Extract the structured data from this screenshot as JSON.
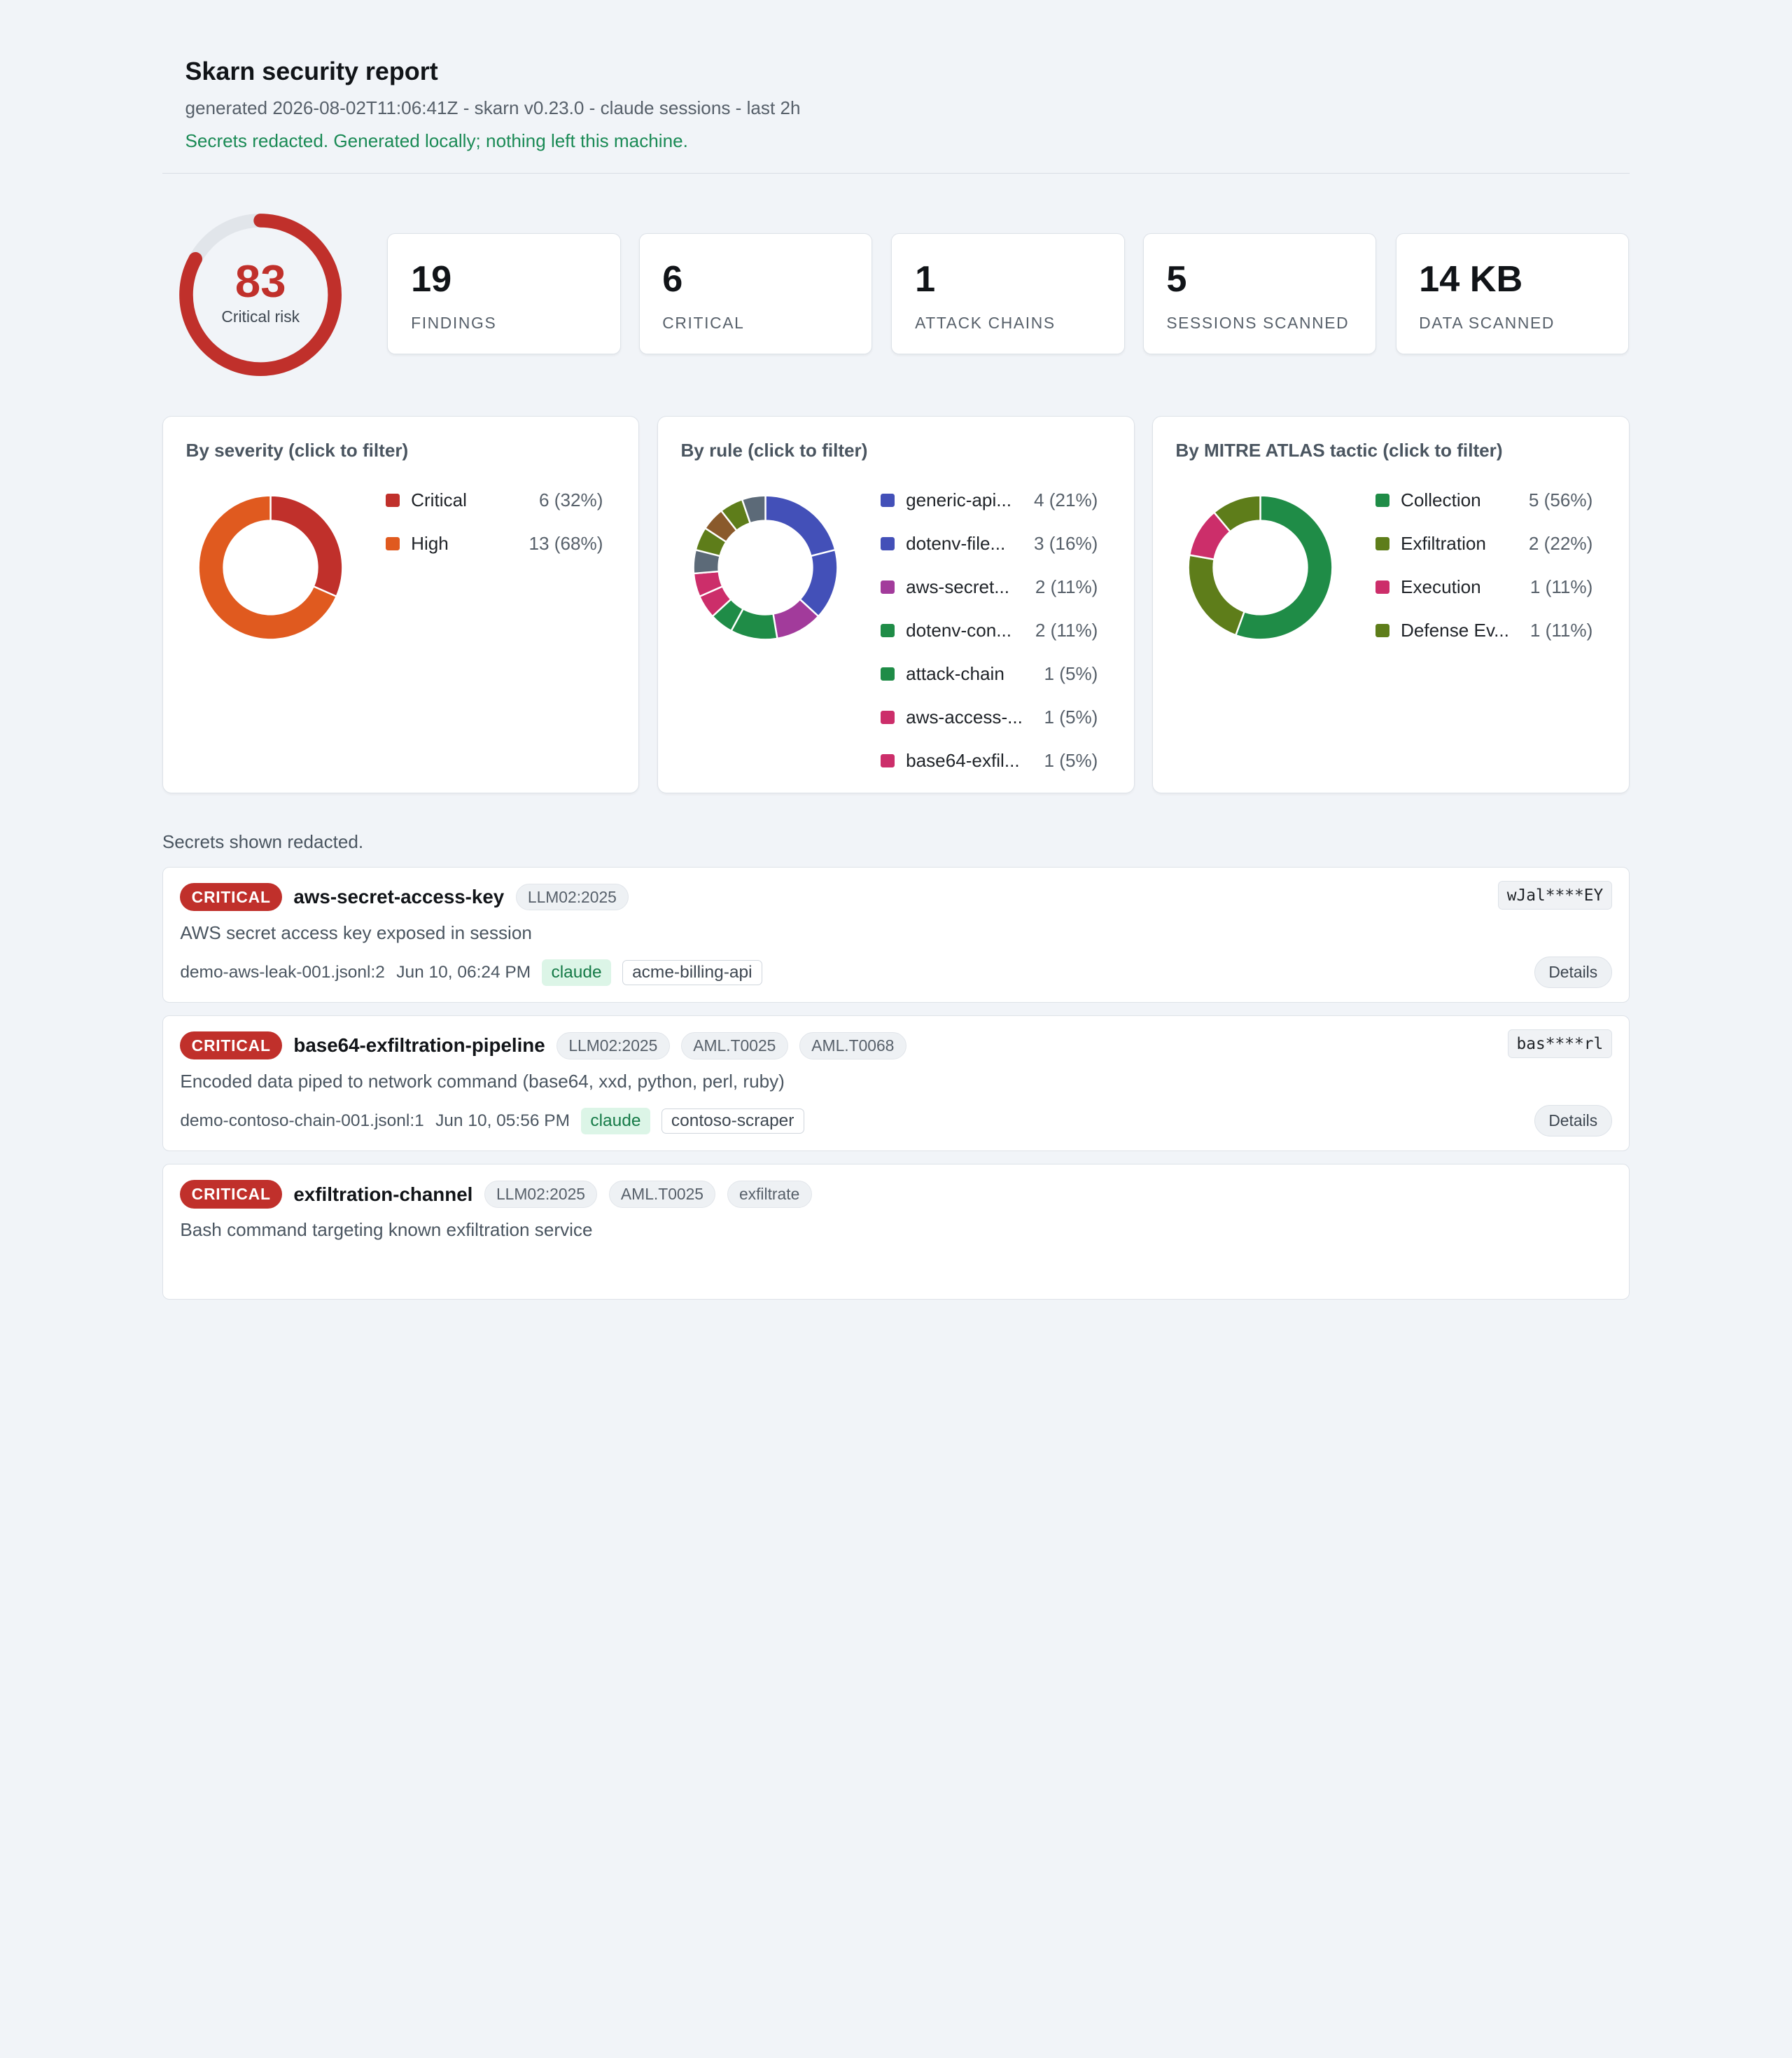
{
  "header": {
    "title": "Skarn security report",
    "subtitle": "generated 2026-08-02T11:06:41Z - skarn v0.23.0 - claude sessions - last 2h",
    "notice": "Secrets redacted. Generated locally; nothing left this machine."
  },
  "risk": {
    "score": "83",
    "label": "Critical risk",
    "fraction": 0.83,
    "color": "#c0302b"
  },
  "stats": [
    {
      "value": "19",
      "label": "FINDINGS"
    },
    {
      "value": "6",
      "label": "CRITICAL"
    },
    {
      "value": "1",
      "label": "ATTACK CHAINS"
    },
    {
      "value": "5",
      "label": "SESSIONS SCANNED"
    },
    {
      "value": "14 KB",
      "label": "DATA SCANNED"
    }
  ],
  "panels": {
    "severity": {
      "title": "By severity (click to filter)",
      "items": [
        {
          "name": "Critical",
          "count": 6,
          "value": "6 (32%)",
          "color": "#c0302b"
        },
        {
          "name": "High",
          "count": 13,
          "value": "13 (68%)",
          "color": "#e05a1f"
        }
      ]
    },
    "rule": {
      "title": "By rule (click to filter)",
      "items": [
        {
          "name": "generic-api...",
          "count": 4,
          "value": "4 (21%)",
          "color": "#4350b8"
        },
        {
          "name": "dotenv-file...",
          "count": 3,
          "value": "3 (16%)",
          "color": "#4350b8"
        },
        {
          "name": "aws-secret...",
          "count": 2,
          "value": "2 (11%)",
          "color": "#a23b9b"
        },
        {
          "name": "dotenv-con...",
          "count": 2,
          "value": "2 (11%)",
          "color": "#1f8c47"
        },
        {
          "name": "attack-chain",
          "count": 1,
          "value": "1 (5%)",
          "color": "#1f8c47"
        },
        {
          "name": "aws-access-...",
          "count": 1,
          "value": "1 (5%)",
          "color": "#cc2e6a"
        },
        {
          "name": "base64-exfil...",
          "count": 1,
          "value": "1 (5%)",
          "color": "#cc2e6a"
        }
      ],
      "extra_slices": [
        {
          "count": 1,
          "color": "#5c6a78"
        },
        {
          "count": 1,
          "color": "#5e7d1a"
        },
        {
          "count": 1,
          "color": "#8a5a2b"
        },
        {
          "count": 1,
          "color": "#5e7d1a"
        },
        {
          "count": 1,
          "color": "#5c6a78"
        }
      ]
    },
    "tactic": {
      "title": "By MITRE ATLAS tactic (click to filter)",
      "items": [
        {
          "name": "Collection",
          "count": 5,
          "value": "5 (56%)",
          "color": "#1f8c47"
        },
        {
          "name": "Exfiltration",
          "count": 2,
          "value": "2 (22%)",
          "color": "#5e7d1a"
        },
        {
          "name": "Execution",
          "count": 1,
          "value": "1 (11%)",
          "color": "#cc2e6a"
        },
        {
          "name": "Defense Ev...",
          "count": 1,
          "value": "1 (11%)",
          "color": "#5e7d1a"
        }
      ]
    }
  },
  "note": "Secrets shown redacted.",
  "findings": [
    {
      "severity": "CRITICAL",
      "name": "aws-secret-access-key",
      "tags": [
        "LLM02:2025"
      ],
      "secret": "wJal****EY",
      "description": "AWS secret access key exposed in session",
      "location": "demo-aws-leak-001.jsonl:2",
      "time": "Jun 10, 06:24 PM",
      "agent": "claude",
      "project": "acme-billing-api",
      "details_label": "Details"
    },
    {
      "severity": "CRITICAL",
      "name": "base64-exfiltration-pipeline",
      "tags": [
        "LLM02:2025",
        "AML.T0025",
        "AML.T0068"
      ],
      "secret": "bas****rl",
      "description": "Encoded data piped to network command (base64, xxd, python, perl, ruby)",
      "location": "demo-contoso-chain-001.jsonl:1",
      "time": "Jun 10, 05:56 PM",
      "agent": "claude",
      "project": "contoso-scraper",
      "details_label": "Details"
    },
    {
      "severity": "CRITICAL",
      "name": "exfiltration-channel",
      "tags": [
        "LLM02:2025",
        "AML.T0025",
        "exfiltrate"
      ],
      "description": "Bash command targeting known exfiltration service"
    }
  ]
}
